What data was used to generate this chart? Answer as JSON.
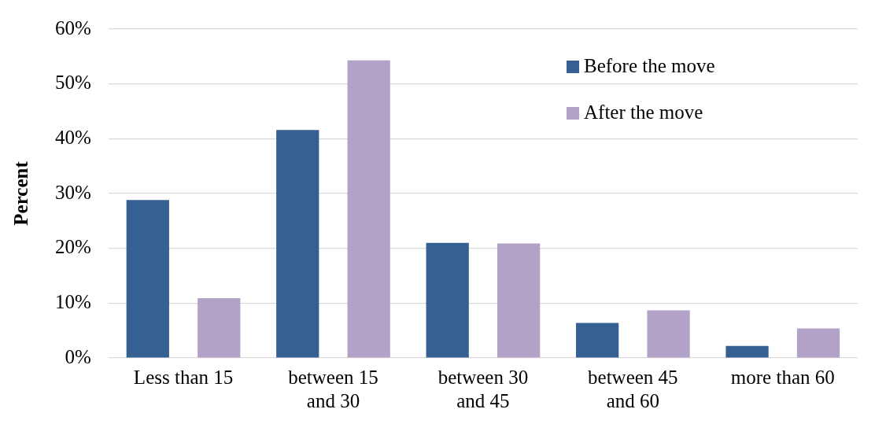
{
  "chart_data": {
    "type": "bar",
    "ylabel": "Percent",
    "categories": [
      "Less than 15",
      "between 15 and 30",
      "between 30 and 45",
      "between 45 and 60",
      "more than 60"
    ],
    "series": [
      {
        "name": "Before the move",
        "color": "#376092",
        "values": [
          28.8,
          41.6,
          21.0,
          6.4,
          2.2
        ]
      },
      {
        "name": "After the move",
        "color": "#b3a2c7",
        "values": [
          10.9,
          54.3,
          20.9,
          8.7,
          5.4
        ]
      }
    ],
    "ylim": [
      0,
      60
    ],
    "yticks": [
      {
        "value": 0,
        "label": "0%"
      },
      {
        "value": 10,
        "label": "10%"
      },
      {
        "value": 20,
        "label": "20%"
      },
      {
        "value": 30,
        "label": "30%"
      },
      {
        "value": 40,
        "label": "40%"
      },
      {
        "value": 50,
        "label": "50%"
      },
      {
        "value": 60,
        "label": "60%"
      }
    ],
    "grid": "y",
    "legend": "top right"
  }
}
